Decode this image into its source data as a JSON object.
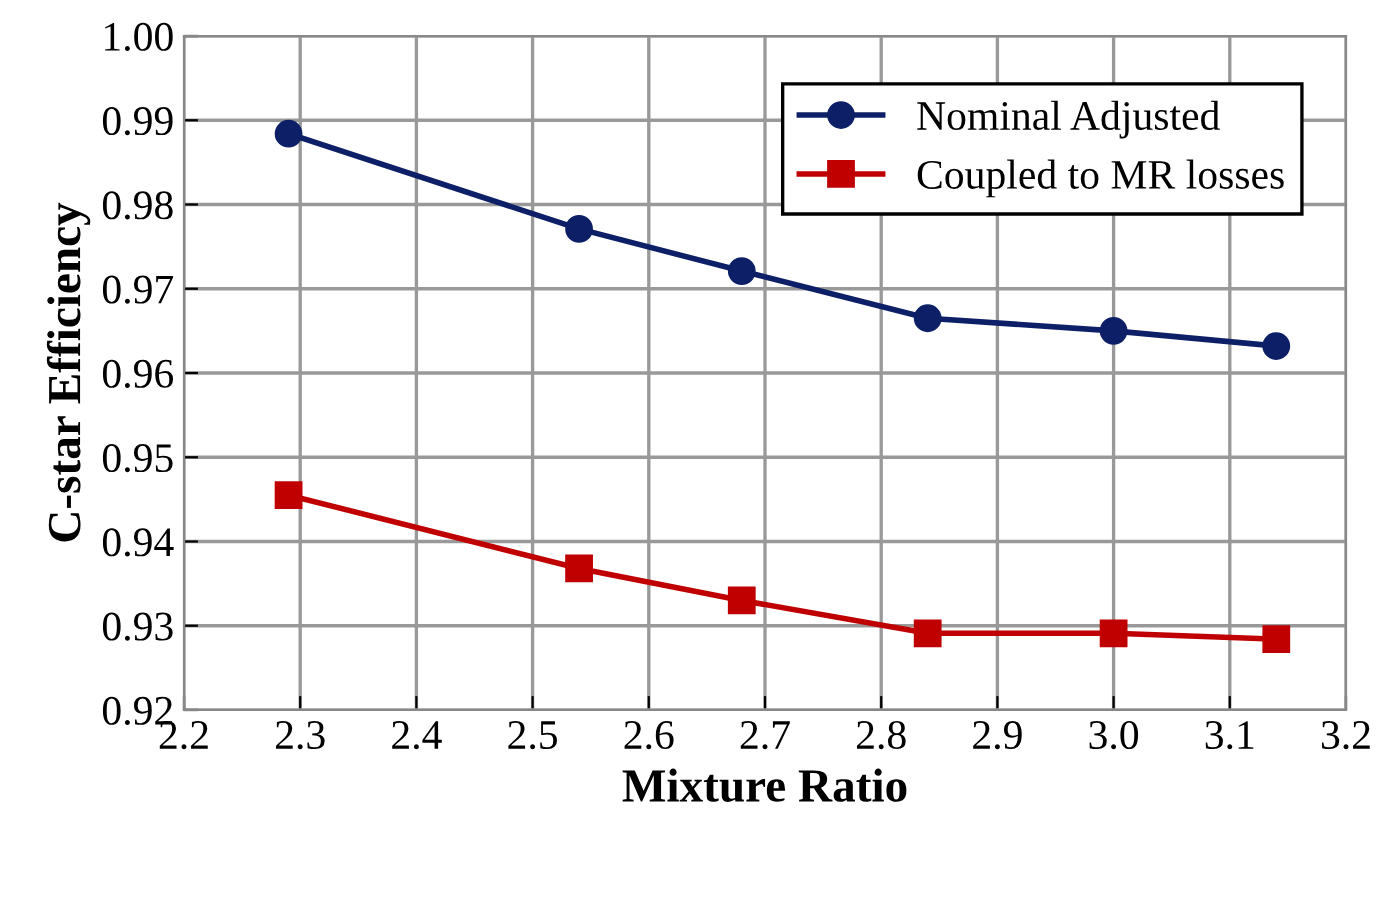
{
  "chart_data": {
    "type": "line",
    "xlabel": "Mixture Ratio",
    "ylabel": "C-star Efficiency",
    "x": [
      2.29,
      2.54,
      2.68,
      2.84,
      3.0,
      3.14
    ],
    "series": [
      {
        "name": "Nominal Adjusted",
        "color": "#0d1f66",
        "marker": "circle",
        "values": [
          0.9884,
          0.9771,
          0.9721,
          0.9665,
          0.965,
          0.9632
        ]
      },
      {
        "name": "Coupled to MR losses",
        "color": "#c00000",
        "marker": "square",
        "values": [
          0.9455,
          0.9368,
          0.933,
          0.9291,
          0.9291,
          0.9284
        ]
      }
    ],
    "xlim": [
      2.2,
      3.2
    ],
    "xticks": [
      {
        "value": 2.2,
        "label": "2.2"
      },
      {
        "value": 2.3,
        "label": "2.3"
      },
      {
        "value": 2.4,
        "label": "2.4"
      },
      {
        "value": 2.5,
        "label": "2.5"
      },
      {
        "value": 2.6,
        "label": "2.6"
      },
      {
        "value": 2.7,
        "label": "2.7"
      },
      {
        "value": 2.8,
        "label": "2.8"
      },
      {
        "value": 2.9,
        "label": "2.9"
      },
      {
        "value": 3.0,
        "label": "3.0"
      },
      {
        "value": 3.1,
        "label": "3.1"
      },
      {
        "value": 3.2,
        "label": "3.2"
      }
    ],
    "ylim": [
      0.92,
      1.0
    ],
    "yticks": [
      {
        "value": 0.92,
        "label": "0.92"
      },
      {
        "value": 0.93,
        "label": "0.93"
      },
      {
        "value": 0.94,
        "label": "0.94"
      },
      {
        "value": 0.95,
        "label": "0.95"
      },
      {
        "value": 0.96,
        "label": "0.96"
      },
      {
        "value": 0.97,
        "label": "0.97"
      },
      {
        "value": 0.98,
        "label": "0.98"
      },
      {
        "value": 0.99,
        "label": "0.99"
      },
      {
        "value": 1.0,
        "label": "1.00"
      }
    ],
    "grid": true,
    "legend": "top right",
    "line_style": "solid"
  }
}
